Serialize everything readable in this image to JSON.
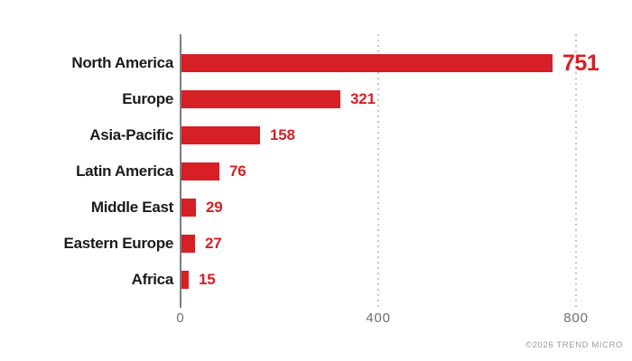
{
  "chart_data": {
    "type": "bar",
    "orientation": "horizontal",
    "title": "",
    "xlabel": "",
    "ylabel": "",
    "categories": [
      "North America",
      "Europe",
      "Asia-Pacific",
      "Latin America",
      "Middle East",
      "Eastern Europe",
      "Africa"
    ],
    "values": [
      751,
      321,
      158,
      76,
      29,
      27,
      15
    ],
    "xlim": [
      0,
      800
    ],
    "x_ticks": [
      0,
      400,
      800
    ],
    "x_tick_labels": [
      "0",
      "400",
      "800"
    ],
    "grid": "dotted vertical gridlines at 400 and 800",
    "legend": false,
    "highlight_category": "North America",
    "colors": {
      "bar": "#d71f26",
      "value_label": "#d71f26",
      "category_label": "#1b1b1b",
      "axis_line": "#7d7d7d",
      "gridline": "#c6c6c6",
      "tick_label": "#6e6e6e"
    }
  },
  "footer": {
    "copyright": "©2026 TREND MICRO"
  }
}
